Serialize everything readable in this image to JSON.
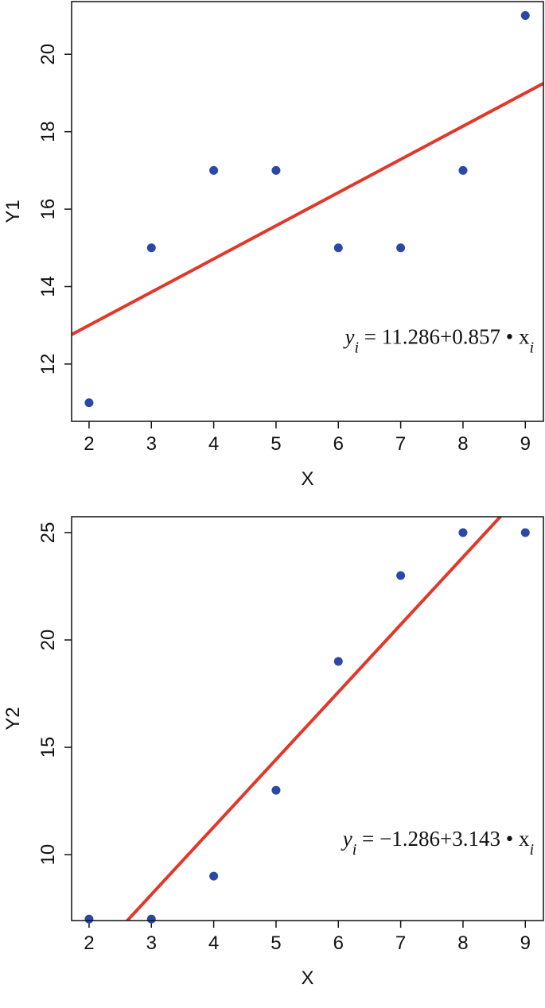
{
  "chart_data": [
    {
      "type": "scatter",
      "x_label": "X",
      "y_label": "Y1",
      "x": [
        2,
        3,
        4,
        5,
        6,
        7,
        8,
        9
      ],
      "series": [
        {
          "color": "#2b47a8",
          "values": [
            11,
            15,
            17,
            17,
            15,
            15,
            17,
            21
          ]
        }
      ],
      "fit": {
        "intercept": 11.286,
        "slope": 0.857,
        "color": "#e0382a"
      },
      "annotation": [
        "y",
        "i",
        " = 11.286+0.857 • ",
        "x",
        "i"
      ],
      "xlim": [
        1.72,
        9.29
      ],
      "ylim": [
        10.52,
        21.36
      ],
      "xticks": [
        2,
        3,
        4,
        5,
        6,
        7,
        8,
        9
      ],
      "yticks": [
        12,
        14,
        16,
        18,
        20
      ]
    },
    {
      "type": "scatter",
      "x_label": "X",
      "y_label": "Y2",
      "x": [
        2,
        3,
        4,
        5,
        6,
        7,
        8,
        9
      ],
      "series": [
        {
          "color": "#2b47a8",
          "values": [
            7,
            7,
            9,
            13,
            19,
            23,
            25,
            25
          ]
        }
      ],
      "fit": {
        "intercept": -1.286,
        "slope": 3.143,
        "color": "#e0382a"
      },
      "annotation": [
        "y",
        "i",
        " = −1.286+3.143 • ",
        "x",
        "i"
      ],
      "xlim": [
        1.72,
        9.29
      ],
      "ylim": [
        6.93,
        25.74
      ],
      "xticks": [
        2,
        3,
        4,
        5,
        6,
        7,
        8,
        9
      ],
      "yticks": [
        10,
        15,
        20,
        25
      ]
    }
  ]
}
